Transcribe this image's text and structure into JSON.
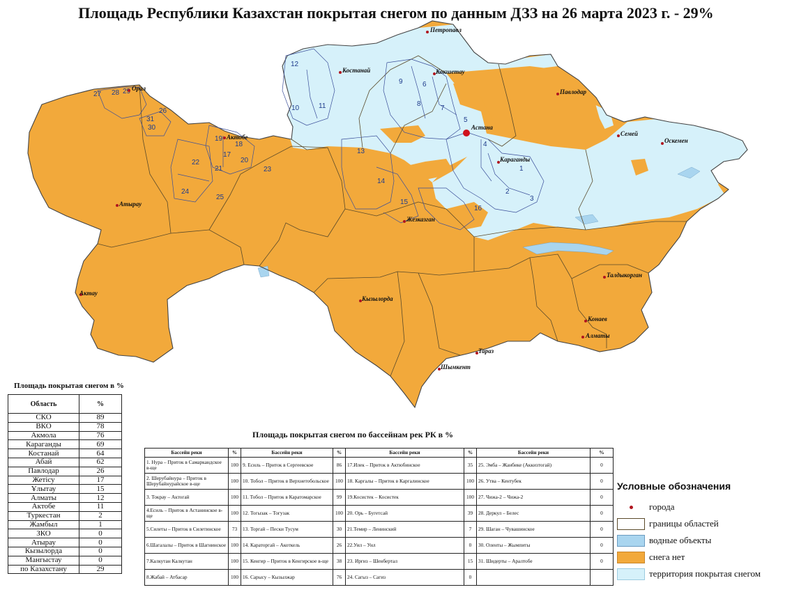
{
  "title": "Площадь Республики Казахстан покрытая снегом по данным ДЗЗ на 26 марта 2023 г. - 29%",
  "colors": {
    "no_snow": "#F2A93B",
    "snow": "#D6F1FA",
    "water": "#A9D5EF",
    "city": "#B0151F",
    "boundary": "#5a4a2a",
    "basin": "#3b4f9a"
  },
  "cities": [
    "Петропавл",
    "Костанай",
    "Кокшетау",
    "Павлодар",
    "Семей",
    "Оскемен",
    "Астана",
    "Караганды",
    "Актобе",
    "Орал",
    "Атырау",
    "Актау",
    "Жезказган",
    "Кызылорда",
    "Талдыкорган",
    "Конаев",
    "Алматы",
    "Тараз",
    "Шымкент"
  ],
  "basin_numbers": [
    "1",
    "2",
    "3",
    "4",
    "5",
    "6",
    "7",
    "8",
    "9",
    "10",
    "11",
    "12",
    "13",
    "14",
    "15",
    "16",
    "17",
    "18",
    "19",
    "20",
    "21",
    "22",
    "23",
    "24",
    "25",
    "26",
    "27",
    "28",
    "29",
    "30",
    "31"
  ],
  "region_table": {
    "title": "Площадь покрытая снегом в %",
    "headers": [
      "Область",
      "%"
    ],
    "rows": [
      [
        "СКО",
        "89"
      ],
      [
        "ВКО",
        "78"
      ],
      [
        "Акмола",
        "76"
      ],
      [
        "Караганды",
        "69"
      ],
      [
        "Костанай",
        "64"
      ],
      [
        "Абай",
        "62"
      ],
      [
        "Павлодар",
        "26"
      ],
      [
        "Жетісу",
        "17"
      ],
      [
        "Ұлытау",
        "15"
      ],
      [
        "Алматы",
        "12"
      ],
      [
        "Актобе",
        "11"
      ],
      [
        "Туркестан",
        "2"
      ],
      [
        "Жамбыл",
        "1"
      ],
      [
        "ЗКО",
        "0"
      ],
      [
        "Атырау",
        "0"
      ],
      [
        "Кызылорда",
        "0"
      ],
      [
        "Мангыстау",
        "0"
      ],
      [
        "по Казахстану",
        "29"
      ]
    ]
  },
  "basin_table": {
    "title": "Площадь покрытая снегом по бассейнам рек РК в %",
    "headers": [
      "Бассейн реки",
      "%",
      "Бассейн реки",
      "%",
      "Бассейн реки",
      "%",
      "Бассейн реки",
      "%"
    ],
    "rows": [
      [
        "1. Нура – Приток в Самаркандское в-ще",
        "100",
        "9. Есиль – Приток в Сергеевское",
        "86",
        "17.Илек – Приток в Актюбинское",
        "35",
        "25. Эмба – Жанбике (Аккизтогай)",
        "0"
      ],
      [
        "2. Шерубайнура – Приток в Шерубайнурайское в-ще",
        "100",
        "10. Тобол – Приток в Верхнетобольское",
        "100",
        "18. Каргалы – Приток в Каргалинское",
        "100",
        "26. Утва – Кентубек",
        "0"
      ],
      [
        "3. Токрау – Актогай",
        "100",
        "11. Тобол – Приток в Каратомарское",
        "99",
        "19.Косистек – Косистек",
        "100",
        "27. Чижа-2 – Чижа-2",
        "0"
      ],
      [
        "4.Есиль – Приток в Астанинское в-ще",
        "100",
        "12. Тогызак – Тогузак",
        "100",
        "20. Орь – Бугетсай",
        "39",
        "28. Деркул – Белес",
        "0"
      ],
      [
        "5.Силеты – Приток в Силетинское",
        "73",
        "13. Торгай – Пески Тусум",
        "30",
        "21.Темир – Ленинский",
        "7",
        "29. Шаган – Чувашинское",
        "0"
      ],
      [
        "6.Шагалалы – Приток в Шагнинское",
        "100",
        "14. Караторгай – Акоткель",
        "26",
        "22.Уил – Уил",
        "0",
        "30. Оленты – Жымпиты",
        "0"
      ],
      [
        "7.Калкутан Калкутан",
        "100",
        "15. Кенгир – Приток в Кенгирское в-ще",
        "38",
        "23. Иргиз – Шенбертал",
        "15",
        "31. Шидерты – Аралтобе",
        "0"
      ],
      [
        "8.Жабай – Атбасар",
        "100",
        "16. Сарысу – Кызылжар",
        "76",
        "24. Сагыз – Сагиз",
        "0",
        "",
        ""
      ]
    ]
  },
  "legend": {
    "title": "Условные обозначения",
    "items": [
      {
        "label": "города",
        "type": "dot"
      },
      {
        "label": "границы областей",
        "type": "boundary"
      },
      {
        "label": "водные объекты",
        "type": "water"
      },
      {
        "label": "снега нет",
        "type": "no_snow"
      },
      {
        "label": "территория покрытая снегом",
        "type": "snow"
      }
    ]
  }
}
